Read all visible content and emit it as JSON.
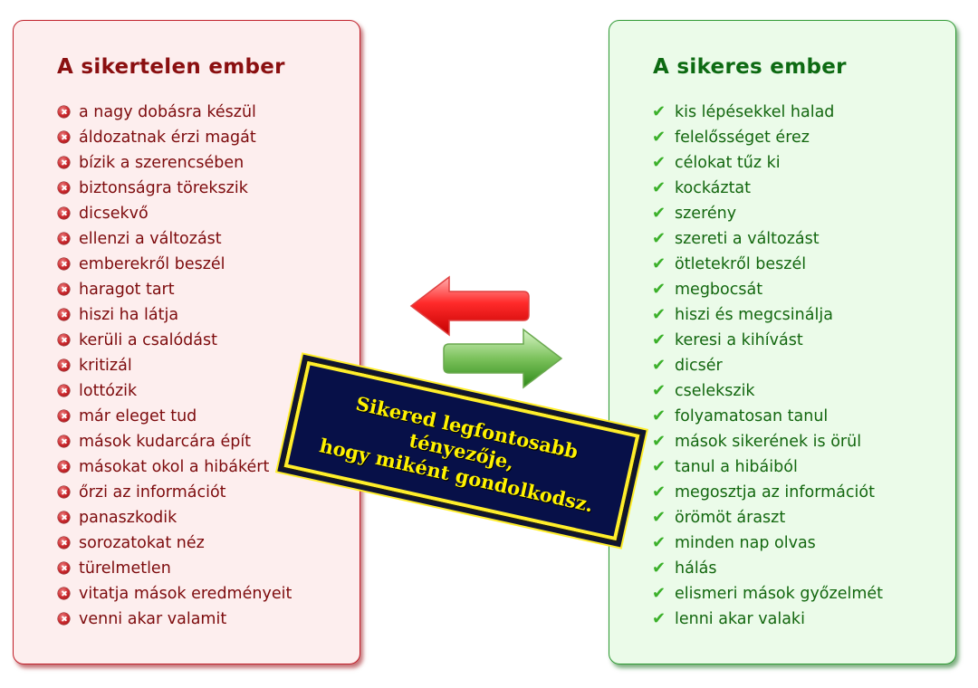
{
  "left_panel": {
    "title": "A sikertelen ember",
    "accent": "#c0202a",
    "items": [
      "a nagy dobásra készül",
      "áldozatnak érzi magát",
      "bízik a szerencsében",
      "biztonságra törekszik",
      "dicsekvő",
      "ellenzi a változást",
      "emberekről beszél",
      "haragot tart",
      "hiszi ha látja",
      "kerüli a csalódást",
      "kritizál",
      "lottózik",
      "már eleget tud",
      "mások kudarcára épít",
      "másokat okol a hibákért",
      "őrzi az információt",
      "panaszkodik",
      "sorozatokat néz",
      "türelmetlen",
      "vitatja mások eredményeit",
      "venni akar valamit"
    ]
  },
  "right_panel": {
    "title": "A sikeres ember",
    "accent": "#2f9a34",
    "items": [
      "kis lépésekkel halad",
      "felelősséget érez",
      "célokat tűz ki",
      "kockáztat",
      "szerény",
      "szereti a változást",
      "ötletekről beszél",
      "megbocsát",
      "hiszi és megcsinálja",
      "keresi a kihívást",
      "dicsér",
      "cselekszik",
      "folyamatosan tanul",
      "mások sikerének is örül",
      "tanul a hibáiból",
      "megosztja az információt",
      "örömöt áraszt",
      "minden nap olvas",
      "hálás",
      "elismeri mások győzelmét",
      "lenni akar valaki"
    ]
  },
  "banner": {
    "line1": "Sikered legfontosabb tényezője,",
    "line2": "hogy miként gondolkodsz."
  },
  "icons": {
    "bad_item": "x-circle-icon",
    "good_item": "check-icon",
    "arrow_left": "arrow-left-icon",
    "arrow_right": "arrow-right-icon"
  }
}
